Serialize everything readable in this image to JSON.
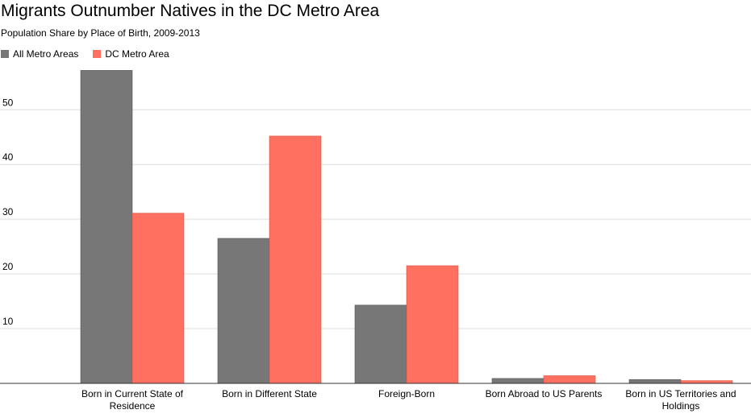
{
  "chart_data": {
    "type": "bar",
    "title": "Migrants Outnumber Natives in the DC Metro Area",
    "subtitle": "Population Share by Place of Birth, 2009-2013",
    "xlabel": "",
    "ylabel": "",
    "ylim": [
      0,
      57.7
    ],
    "yticks": [
      10,
      20,
      30,
      40,
      50
    ],
    "grid": true,
    "legend_position": "top-left",
    "categories": [
      [
        "Born in Current State of",
        "Residence"
      ],
      [
        "Born in Different State"
      ],
      [
        "Foreign-Born"
      ],
      [
        "Born Abroad to US Parents"
      ],
      [
        "Born in US Territories and",
        "Holdings"
      ]
    ],
    "series": [
      {
        "name": "All Metro Areas",
        "color": "#777777",
        "values": [
          57.2,
          26.5,
          14.3,
          0.9,
          0.7
        ]
      },
      {
        "name": "DC Metro Area",
        "color": "#ff7060",
        "values": [
          31.1,
          45.2,
          21.5,
          1.4,
          0.5
        ]
      }
    ]
  }
}
